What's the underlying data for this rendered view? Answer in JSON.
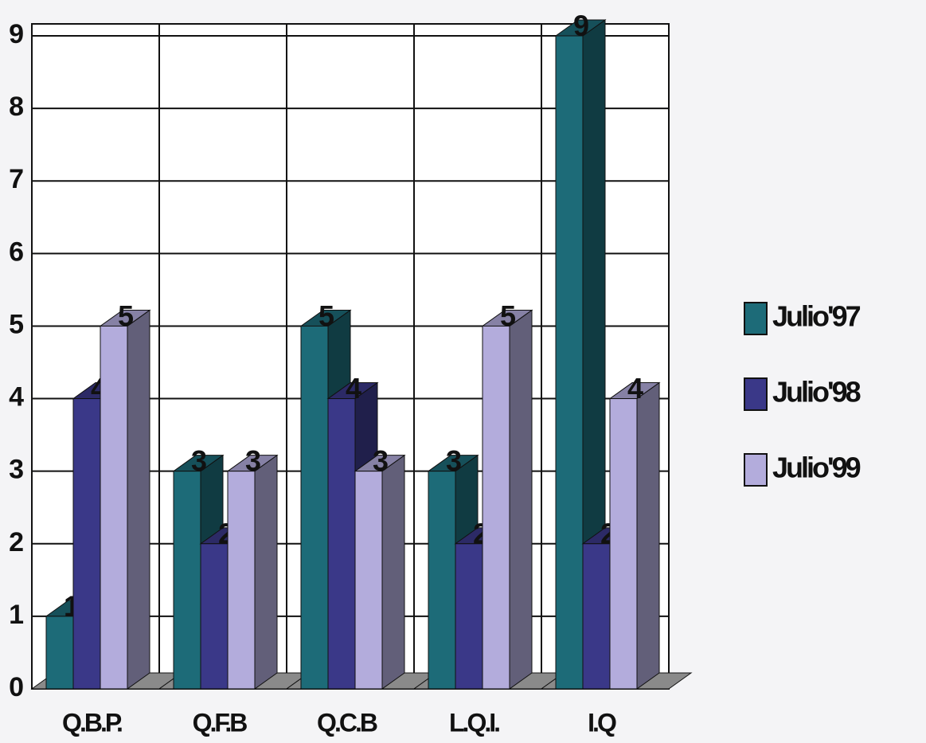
{
  "chart_data": {
    "type": "bar3d",
    "categories": [
      "Q.B.P.",
      "Q.F.B",
      "Q.C.B",
      "L.Q.I.",
      "I.Q"
    ],
    "series": [
      {
        "name": "Julio'97",
        "color": "#1d6b78",
        "values": [
          1,
          3,
          5,
          3,
          9
        ]
      },
      {
        "name": "Julio'98",
        "color": "#3a3888",
        "values": [
          4,
          2,
          4,
          2,
          2
        ]
      },
      {
        "name": "Julio'99",
        "color": "#b3acdc",
        "values": [
          5,
          3,
          3,
          5,
          4
        ]
      }
    ],
    "ylim": [
      0,
      9
    ],
    "yticks": [
      0,
      1,
      2,
      3,
      4,
      5,
      6,
      7,
      8,
      9
    ],
    "grid": true,
    "legend": "right"
  }
}
